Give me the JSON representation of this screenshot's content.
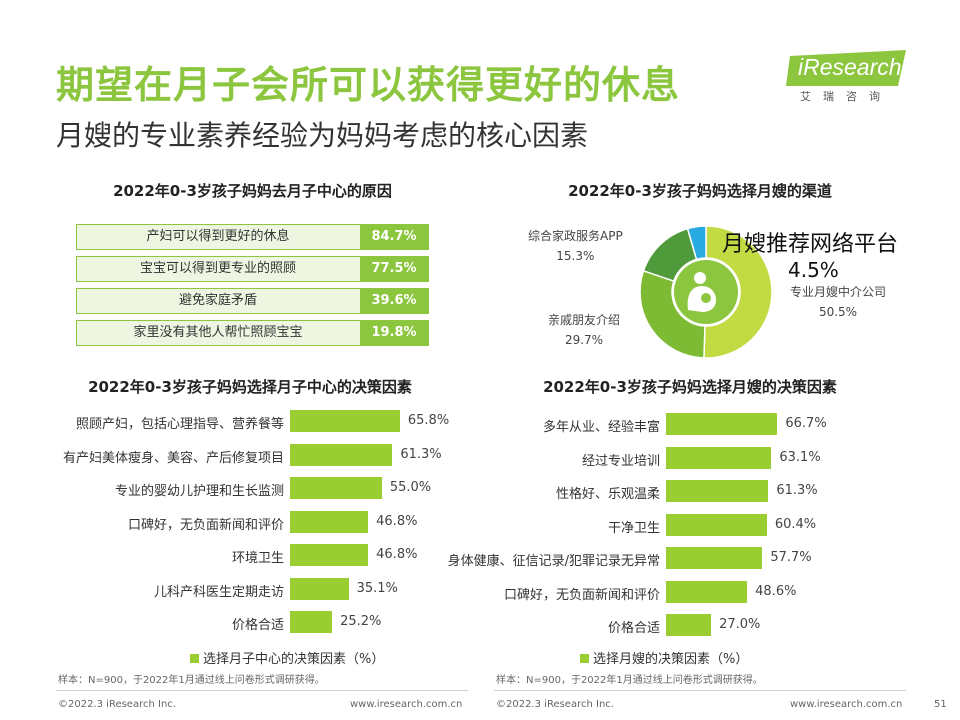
{
  "header": {
    "title": "期望在月子会所可以获得更好的休息",
    "subtitle": "月嫂的专业素养经验为妈妈考虑的核心因素",
    "logo_text": "iResearch",
    "logo_sub": "艾瑞咨询",
    "brand_color": "#8cc63f"
  },
  "chart_data": [
    {
      "type": "table",
      "title": "2022年0-3岁孩子妈妈去月子中心的原因",
      "categories": [
        "产妇可以得到更好的休息",
        "宝宝可以得到更专业的照顾",
        "避免家庭矛盾",
        "家里没有其他人帮忙照顾宝宝"
      ],
      "values": [
        84.7,
        77.5,
        39.6,
        19.8
      ],
      "value_labels": [
        "84.7%",
        "77.5%",
        "39.6%",
        "19.8%"
      ]
    },
    {
      "type": "pie",
      "title": "2022年0-3岁孩子妈妈选择月嫂的渠道",
      "slices": [
        {
          "name": "专业月嫂中介公司",
          "value": 50.5,
          "label": "50.5%",
          "color": "#c2db43"
        },
        {
          "name": "亲戚朋友介绍",
          "value": 29.7,
          "label": "29.7%",
          "color": "#7dbb35"
        },
        {
          "name": "综合家政服务APP",
          "value": 15.3,
          "label": "15.3%",
          "color": "#4f9a3a"
        },
        {
          "name": "月嫂推荐网络平台",
          "value": 4.5,
          "label": "4.5%",
          "color": "#29abe2"
        }
      ]
    },
    {
      "type": "bar",
      "orientation": "horizontal",
      "title": "2022年0-3岁孩子妈妈选择月子中心的决策因素",
      "categories": [
        "照顾产妇，包括心理指导、营养餐等",
        "有产妇美体瘦身、美容、产后修复项目",
        "专业的婴幼儿护理和生长监测",
        "口碑好，无负面新闻和评价",
        "环境卫生",
        "儿科产科医生定期走访",
        "价格合适"
      ],
      "values": [
        65.8,
        61.3,
        55.0,
        46.8,
        46.8,
        35.1,
        25.2
      ],
      "value_labels": [
        "65.8%",
        "61.3%",
        "55.0%",
        "46.8%",
        "46.8%",
        "35.1%",
        "25.2%"
      ],
      "legend": "选择月子中心的决策因素（%）",
      "color": "#9acd32"
    },
    {
      "type": "bar",
      "orientation": "horizontal",
      "title": "2022年0-3岁孩子妈妈选择月嫂的决策因素",
      "categories": [
        "多年从业、经验丰富",
        "经过专业培训",
        "性格好、乐观温柔",
        "干净卫生",
        "身体健康、征信记录/犯罪记录无异常",
        "口碑好，无负面新闻和评价",
        "价格合适"
      ],
      "values": [
        66.7,
        63.1,
        61.3,
        60.4,
        57.7,
        48.6,
        27.0
      ],
      "value_labels": [
        "66.7%",
        "63.1%",
        "61.3%",
        "60.4%",
        "57.7%",
        "48.6%",
        "27.0%"
      ],
      "legend": "选择月嫂的决策因素（%）",
      "color": "#9acd32"
    }
  ],
  "notes": {
    "left": "样本：N=900，于2022年1月通过线上问卷形式调研获得。",
    "right": "样本：N=900，于2022年1月通过线上问卷形式调研获得。"
  },
  "footer": {
    "left_copyright": "©2022.3 iResearch Inc.",
    "left_url": "www.iresearch.com.cn",
    "right_copyright": "©2022.3 iResearch Inc.",
    "right_url": "www.iresearch.com.cn",
    "page_number": "51"
  }
}
